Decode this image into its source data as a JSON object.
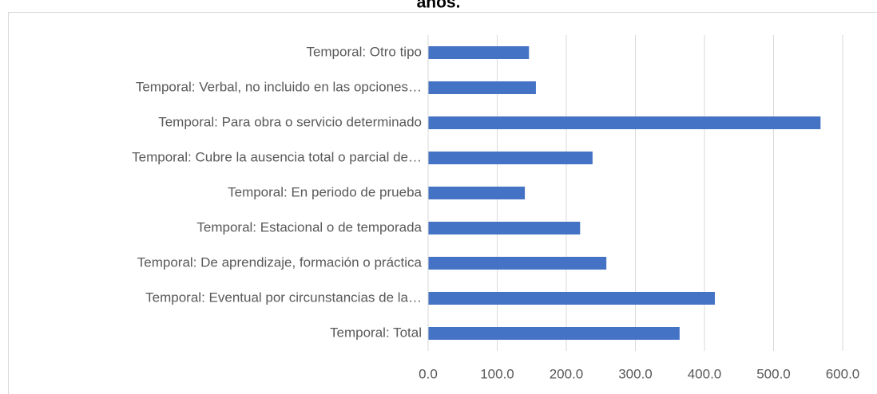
{
  "chart_data": {
    "type": "bar",
    "orientation": "horizontal",
    "title": "años.",
    "categories": [
      "Temporal: Otro tipo",
      "Temporal: Verbal, no incluido en las opciones…",
      "Temporal: Para obra o servicio determinado",
      "Temporal: Cubre la ausencia total o parcial de…",
      "Temporal: En periodo de prueba",
      "Temporal: Estacional o de temporada",
      "Temporal: De aprendizaje, formación o práctica",
      "Temporal: Eventual por circunstancias de la…",
      "Temporal: Total"
    ],
    "values": [
      146,
      156,
      568,
      238,
      140,
      220,
      258,
      415,
      364
    ],
    "color": "#4472c4",
    "xlim": [
      0,
      600
    ],
    "xticks": [
      {
        "value": 0,
        "label": "0.0"
      },
      {
        "value": 100,
        "label": "100.0"
      },
      {
        "value": 200,
        "label": "200.0"
      },
      {
        "value": 300,
        "label": "300.0"
      },
      {
        "value": 400,
        "label": "400.0"
      },
      {
        "value": 500,
        "label": "500.0"
      },
      {
        "value": 600,
        "label": "600.0"
      }
    ],
    "grid": true
  }
}
